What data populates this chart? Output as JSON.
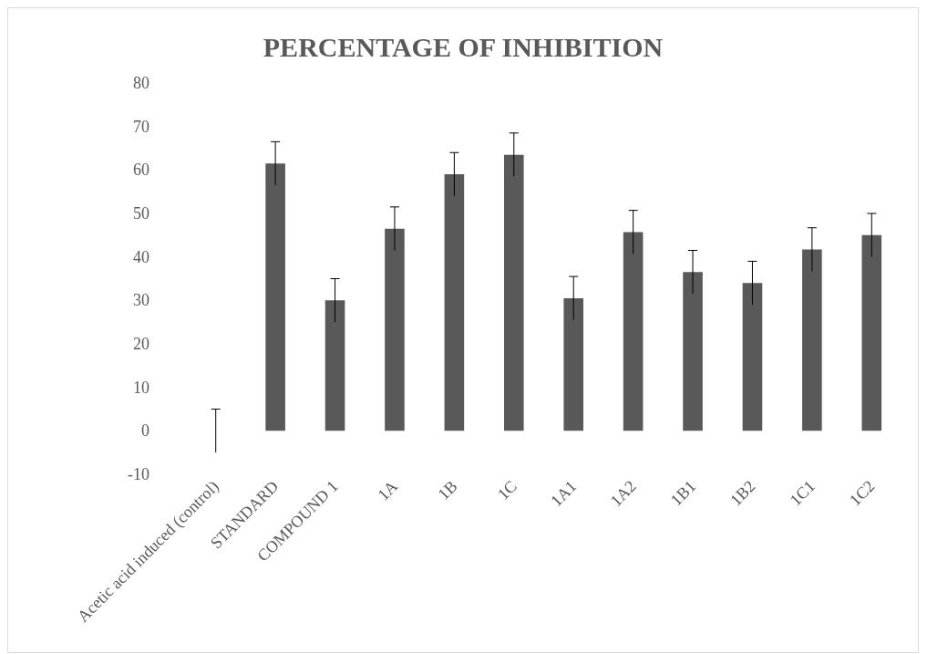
{
  "chart_data": {
    "type": "bar",
    "title": "PERCENTAGE OF INHIBITION",
    "categories": [
      "Acetic acid induced (control)",
      "STANDARD",
      "COMPOUND 1",
      "1A",
      "1B",
      "1C",
      "1A1",
      "1A2",
      "1B1",
      "1B2",
      "1C1",
      "1C2"
    ],
    "values": [
      0,
      61.5,
      30,
      46.5,
      59,
      63.5,
      30.5,
      45.7,
      36.5,
      34,
      41.7,
      45
    ],
    "errors": [
      5,
      5,
      5,
      5,
      5,
      5,
      5,
      5,
      5,
      5,
      5,
      5
    ],
    "color": "#595959",
    "ylim": [
      -10,
      80
    ],
    "yticks": [
      -10,
      0,
      10,
      20,
      30,
      40,
      50,
      60,
      70,
      80
    ],
    "grid": false
  }
}
